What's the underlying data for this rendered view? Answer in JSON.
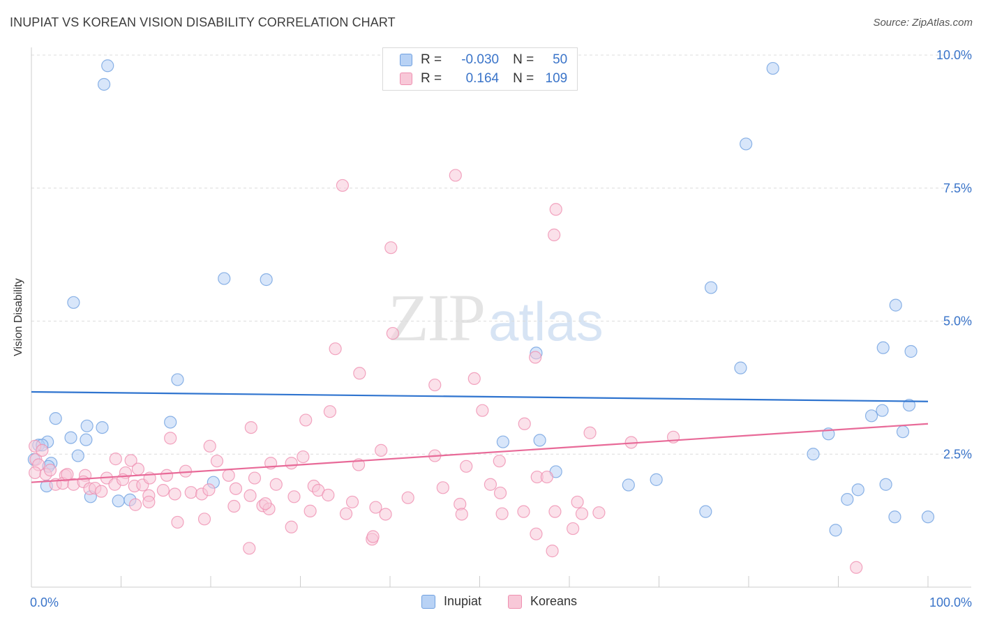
{
  "title": "INUPIAT VS KOREAN VISION DISABILITY CORRELATION CHART",
  "source": "Source: ZipAtlas.com",
  "watermark": {
    "zip": "ZIP",
    "atlas": "atlas"
  },
  "chart_data": {
    "type": "scatter",
    "xlabel": "",
    "ylabel": "Vision Disability",
    "xlim": [
      0,
      100
    ],
    "ylim": [
      0,
      10.0
    ],
    "x_tick_labels": [
      "0.0%",
      "100.0%"
    ],
    "y_ticks": [
      2.5,
      5.0,
      7.5,
      10.0
    ],
    "y_tick_labels": [
      "2.5%",
      "5.0%",
      "7.5%",
      "10.0%"
    ],
    "grid": "horizontal dashed",
    "legend_position": "top-center",
    "stats": [
      {
        "r_label": "R =",
        "r": "-0.030",
        "n_label": "N =",
        "n": "50"
      },
      {
        "r_label": "R =",
        "r": "0.164",
        "n_label": "N =",
        "n": "109"
      }
    ],
    "series": [
      {
        "name": "Inupiat",
        "color": "#6fa0e0",
        "fill": "#b8d2f5",
        "trend": [
          [
            0,
            3.67
          ],
          [
            100,
            3.49
          ]
        ],
        "points": [
          [
            8.5,
            9.8
          ],
          [
            8.1,
            9.45
          ],
          [
            82.7,
            9.75
          ],
          [
            79.7,
            8.33
          ],
          [
            21.5,
            5.8
          ],
          [
            26.2,
            5.78
          ],
          [
            75.8,
            5.63
          ],
          [
            4.7,
            5.35
          ],
          [
            96.4,
            5.3
          ],
          [
            16.3,
            3.9
          ],
          [
            56.3,
            4.4
          ],
          [
            95.0,
            4.5
          ],
          [
            98.1,
            4.43
          ],
          [
            79.1,
            4.12
          ],
          [
            2.7,
            3.17
          ],
          [
            6.2,
            3.03
          ],
          [
            7.9,
            3.0
          ],
          [
            15.5,
            3.1
          ],
          [
            93.7,
            3.22
          ],
          [
            94.9,
            3.32
          ],
          [
            97.9,
            3.42
          ],
          [
            4.4,
            2.81
          ],
          [
            6.1,
            2.77
          ],
          [
            1.8,
            2.73
          ],
          [
            0.8,
            2.67
          ],
          [
            52.6,
            2.73
          ],
          [
            56.7,
            2.76
          ],
          [
            88.9,
            2.88
          ],
          [
            97.2,
            2.92
          ],
          [
            0.3,
            2.4
          ],
          [
            2.2,
            2.33
          ],
          [
            5.2,
            2.47
          ],
          [
            1.9,
            2.27
          ],
          [
            87.2,
            2.5
          ],
          [
            58.5,
            2.17
          ],
          [
            20.3,
            1.97
          ],
          [
            66.6,
            1.92
          ],
          [
            69.7,
            2.02
          ],
          [
            1.7,
            1.9
          ],
          [
            6.6,
            1.7
          ],
          [
            9.7,
            1.62
          ],
          [
            11.0,
            1.64
          ],
          [
            92.2,
            1.83
          ],
          [
            95.3,
            1.93
          ],
          [
            91.0,
            1.65
          ],
          [
            75.2,
            1.42
          ],
          [
            96.3,
            1.32
          ],
          [
            100.0,
            1.32
          ],
          [
            89.7,
            1.07
          ],
          [
            1.2,
            2.67
          ]
        ]
      },
      {
        "name": "Koreans",
        "color": "#ef8fb0",
        "fill": "#f8c8d8",
        "trend": [
          [
            0,
            1.97
          ],
          [
            100,
            3.07
          ]
        ],
        "points": [
          [
            47.3,
            7.74
          ],
          [
            34.7,
            7.55
          ],
          [
            58.5,
            7.1
          ],
          [
            40.1,
            6.38
          ],
          [
            58.3,
            6.62
          ],
          [
            40.3,
            4.77
          ],
          [
            33.9,
            4.48
          ],
          [
            56.2,
            4.32
          ],
          [
            36.6,
            4.02
          ],
          [
            49.4,
            3.92
          ],
          [
            45.0,
            3.8
          ],
          [
            33.3,
            3.3
          ],
          [
            50.3,
            3.32
          ],
          [
            30.6,
            3.14
          ],
          [
            55.0,
            3.07
          ],
          [
            24.5,
            3.0
          ],
          [
            62.3,
            2.9
          ],
          [
            71.6,
            2.82
          ],
          [
            15.5,
            2.8
          ],
          [
            19.9,
            2.65
          ],
          [
            66.9,
            2.72
          ],
          [
            39.0,
            2.57
          ],
          [
            0.4,
            2.65
          ],
          [
            0.5,
            2.4
          ],
          [
            1.2,
            2.57
          ],
          [
            9.4,
            2.41
          ],
          [
            11.1,
            2.38
          ],
          [
            20.7,
            2.37
          ],
          [
            26.7,
            2.33
          ],
          [
            29.0,
            2.33
          ],
          [
            30.3,
            2.45
          ],
          [
            36.5,
            2.3
          ],
          [
            45.0,
            2.47
          ],
          [
            48.5,
            2.27
          ],
          [
            52.2,
            2.37
          ],
          [
            3.8,
            2.1
          ],
          [
            6.0,
            2.1
          ],
          [
            8.4,
            2.05
          ],
          [
            10.5,
            2.15
          ],
          [
            11.9,
            2.22
          ],
          [
            15.1,
            2.1
          ],
          [
            17.2,
            2.18
          ],
          [
            22.0,
            2.1
          ],
          [
            24.9,
            2.05
          ],
          [
            0.8,
            2.3
          ],
          [
            0.4,
            2.15
          ],
          [
            1.6,
            2.12
          ],
          [
            2.1,
            2.2
          ],
          [
            2.7,
            1.93
          ],
          [
            3.5,
            1.95
          ],
          [
            4.0,
            2.12
          ],
          [
            4.7,
            1.93
          ],
          [
            5.8,
            1.98
          ],
          [
            6.5,
            1.85
          ],
          [
            7.1,
            1.86
          ],
          [
            7.8,
            1.8
          ],
          [
            9.3,
            1.93
          ],
          [
            10.2,
            2.02
          ],
          [
            11.5,
            1.9
          ],
          [
            12.4,
            1.92
          ],
          [
            13.1,
            1.72
          ],
          [
            14.7,
            1.82
          ],
          [
            16.0,
            1.75
          ],
          [
            17.8,
            1.78
          ],
          [
            19.0,
            1.75
          ],
          [
            19.8,
            1.83
          ],
          [
            22.8,
            1.85
          ],
          [
            24.4,
            1.72
          ],
          [
            25.8,
            1.53
          ],
          [
            26.5,
            1.47
          ],
          [
            27.3,
            1.93
          ],
          [
            29.3,
            1.7
          ],
          [
            31.5,
            1.9
          ],
          [
            32.0,
            1.82
          ],
          [
            33.1,
            1.73
          ],
          [
            35.8,
            1.6
          ],
          [
            38.4,
            1.5
          ],
          [
            42.0,
            1.68
          ],
          [
            45.9,
            1.87
          ],
          [
            47.8,
            1.56
          ],
          [
            51.2,
            1.93
          ],
          [
            52.3,
            1.77
          ],
          [
            54.9,
            1.42
          ],
          [
            56.4,
            2.07
          ],
          [
            57.5,
            2.07
          ],
          [
            58.4,
            1.42
          ],
          [
            60.9,
            1.6
          ],
          [
            63.3,
            1.4
          ],
          [
            11.6,
            1.55
          ],
          [
            13.1,
            1.6
          ],
          [
            16.3,
            1.22
          ],
          [
            19.3,
            1.28
          ],
          [
            22.6,
            1.52
          ],
          [
            26.1,
            1.57
          ],
          [
            29.0,
            1.13
          ],
          [
            31.1,
            1.43
          ],
          [
            35.1,
            1.38
          ],
          [
            39.5,
            1.37
          ],
          [
            48.0,
            1.37
          ],
          [
            52.5,
            1.38
          ],
          [
            56.3,
            1.0
          ],
          [
            60.4,
            1.1
          ],
          [
            61.4,
            1.38
          ],
          [
            24.3,
            0.73
          ],
          [
            38.0,
            0.9
          ],
          [
            38.1,
            0.95
          ],
          [
            58.1,
            0.68
          ],
          [
            92.0,
            0.37
          ],
          [
            13.2,
            2.05
          ]
        ]
      }
    ]
  }
}
